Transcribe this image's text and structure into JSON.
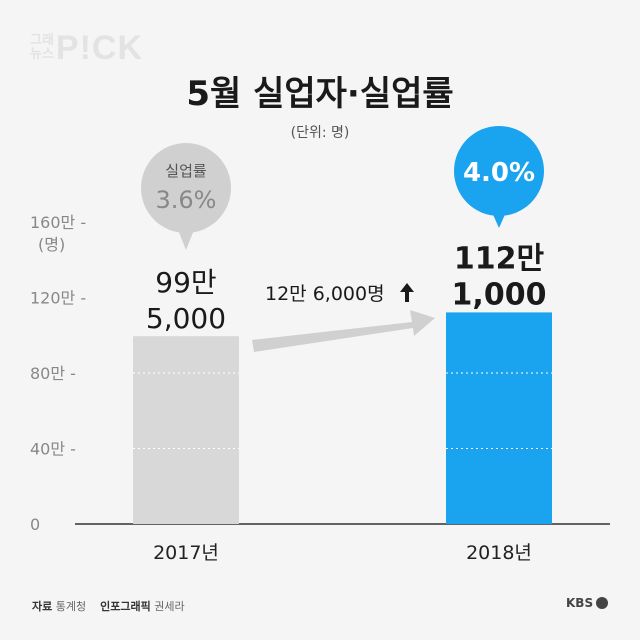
{
  "logo": {
    "top": "그래",
    "bottom": "뉴스",
    "main": "P!CK"
  },
  "title": "5월 실업자·실업률",
  "unit_note": "(단위: 명)",
  "chart_data": {
    "type": "bar",
    "categories": [
      "2017년",
      "2018년"
    ],
    "values": [
      995000,
      1121000
    ],
    "value_labels": [
      [
        "99만",
        "5,000"
      ],
      [
        "112만",
        "1,000"
      ]
    ],
    "rates": [
      {
        "label": "실업률",
        "value": "3.6%"
      },
      {
        "label": "",
        "value": "4.0%"
      }
    ],
    "colors": [
      "#d8d8d8",
      "#1aa3ee"
    ],
    "y_ticks": [
      {
        "value": 0,
        "label": "0"
      },
      {
        "value": 400000,
        "label": "40만 -"
      },
      {
        "value": 800000,
        "label": "80만 -"
      },
      {
        "value": 1200000,
        "label": "120만 -"
      },
      {
        "value": 1600000,
        "label": "160만 -"
      }
    ],
    "y_unit": "(명)",
    "ylim": [
      0,
      1600000
    ],
    "change_label": "12만 6,000명",
    "change_direction": "up"
  },
  "footer": {
    "source_label": "자료",
    "source": "통계청",
    "credit_label": "인포그래픽",
    "credit": "권세라"
  },
  "brand": "KBS"
}
